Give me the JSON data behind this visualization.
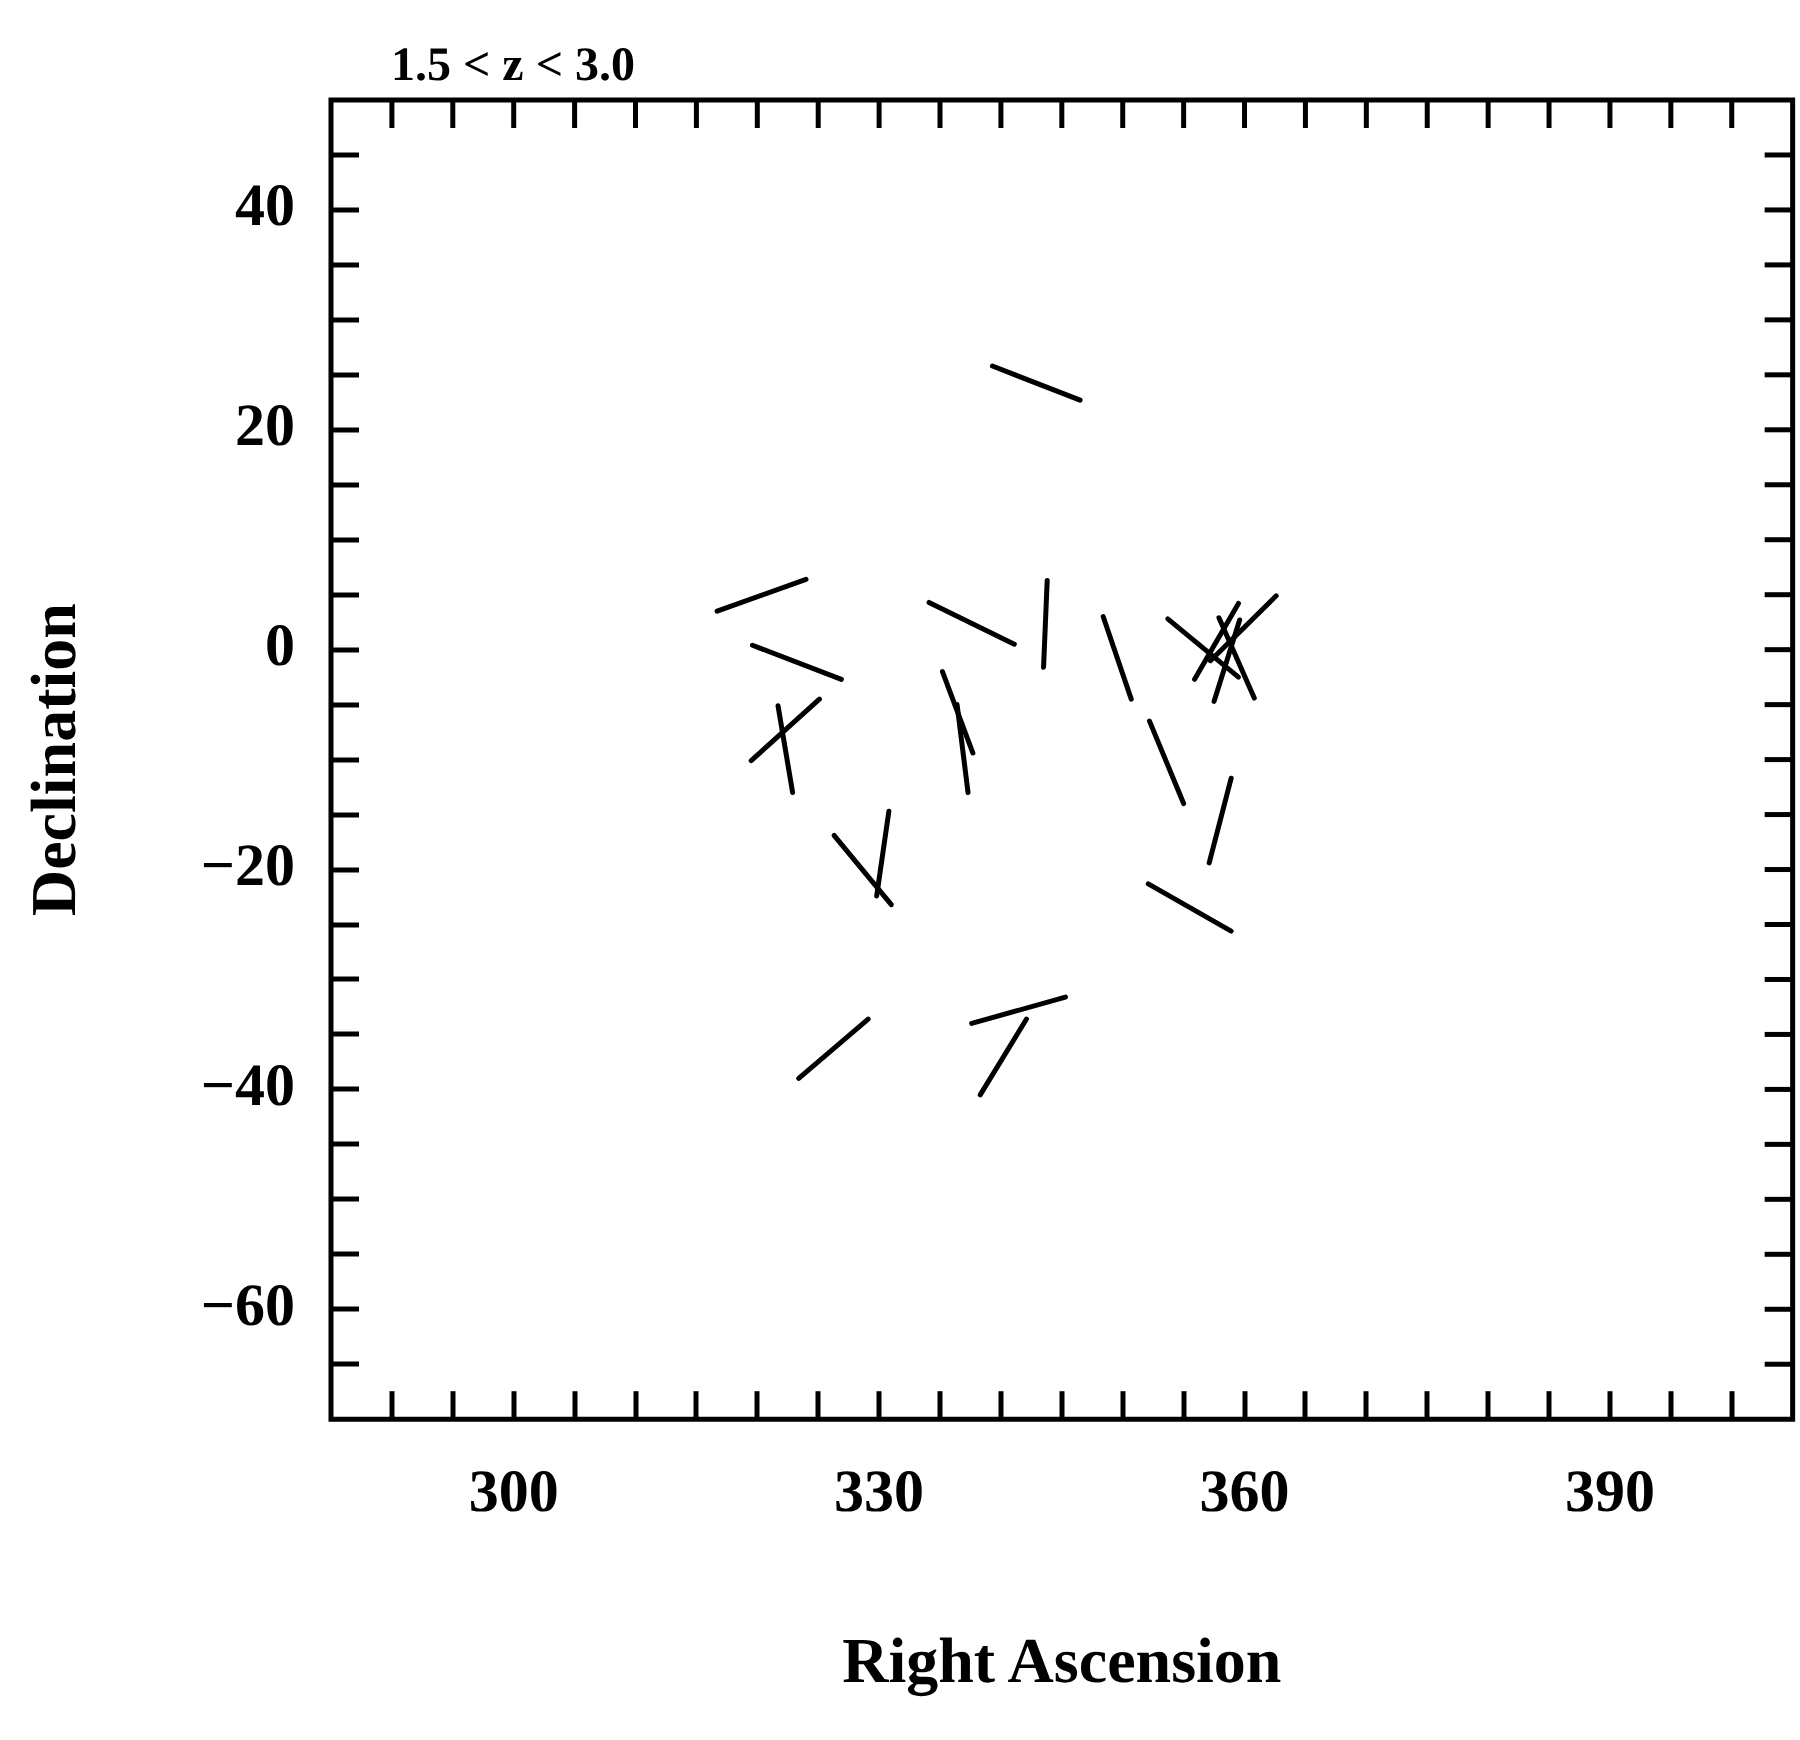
{
  "chart_data": {
    "type": "line",
    "title": "1.5 < z < 3.0",
    "xlabel": "Right Ascension",
    "ylabel": "Declination",
    "xlim": [
      285,
      405
    ],
    "ylim": [
      -70,
      50
    ],
    "xticks": [
      {
        "value": 290,
        "label": null
      },
      {
        "value": 295,
        "label": null
      },
      300,
      {
        "value": 305,
        "label": null
      },
      {
        "value": 310,
        "label": null
      },
      {
        "value": 315,
        "label": null
      },
      {
        "value": 320,
        "label": null
      },
      {
        "value": 325,
        "label": null
      },
      330,
      {
        "value": 335,
        "label": null
      },
      {
        "value": 340,
        "label": null
      },
      {
        "value": 345,
        "label": null
      },
      {
        "value": 350,
        "label": null
      },
      {
        "value": 355,
        "label": null
      },
      360,
      {
        "value": 365,
        "label": null
      },
      {
        "value": 370,
        "label": null
      },
      {
        "value": 375,
        "label": null
      },
      {
        "value": 380,
        "label": null
      },
      {
        "value": 385,
        "label": null
      },
      390,
      {
        "value": 395,
        "label": null
      },
      {
        "value": 400,
        "label": null
      }
    ],
    "yticks": [
      {
        "value": -65,
        "label": null
      },
      -60,
      {
        "value": -55,
        "label": null
      },
      {
        "value": -50,
        "label": null
      },
      {
        "value": -45,
        "label": null
      },
      -40,
      {
        "value": -35,
        "label": null
      },
      {
        "value": -30,
        "label": null
      },
      {
        "value": -25,
        "label": null
      },
      -20,
      {
        "value": -15,
        "label": null
      },
      {
        "value": -10,
        "label": null
      },
      {
        "value": -5,
        "label": null
      },
      0,
      {
        "value": 5,
        "label": null
      },
      {
        "value": 10,
        "label": null
      },
      {
        "value": 15,
        "label": null
      },
      20,
      {
        "value": 25,
        "label": null
      },
      {
        "value": 30,
        "label": null
      },
      {
        "value": 35,
        "label": null
      },
      40,
      {
        "value": 45,
        "label": null
      }
    ],
    "grid": false,
    "legend": false,
    "marker": "none",
    "line_style": "solid",
    "series": [
      {
        "color": "#000000",
        "x": [
          316.7,
          324.0
        ],
        "values": [
          3.5,
          6.4
        ]
      },
      {
        "color": "#000000",
        "x": [
          334.1,
          341.1
        ],
        "values": [
          4.3,
          0.5
        ]
      },
      {
        "color": "#000000",
        "x": [
          319.6,
          326.9
        ],
        "values": [
          0.4,
          -2.7
        ]
      },
      {
        "color": "#000000",
        "x": [
          319.5,
          325.1
        ],
        "values": [
          -10.1,
          -4.5
        ]
      },
      {
        "color": "#000000",
        "x": [
          321.7,
          322.9
        ],
        "values": [
          -5.1,
          -13.0
        ]
      },
      {
        "color": "#000000",
        "x": [
          335.2,
          337.7
        ],
        "values": [
          -2.0,
          -9.4
        ]
      },
      {
        "color": "#000000",
        "x": [
          336.4,
          337.3
        ],
        "values": [
          -5.0,
          -13.0
        ]
      },
      {
        "color": "#000000",
        "x": [
          339.3,
          346.5
        ],
        "values": [
          25.8,
          22.7
        ]
      },
      {
        "color": "#000000",
        "x": [
          343.8,
          343.5
        ],
        "values": [
          6.3,
          -1.6
        ]
      },
      {
        "color": "#000000",
        "x": [
          348.4,
          350.7
        ],
        "values": [
          3.0,
          -4.5
        ]
      },
      {
        "color": "#000000",
        "x": [
          352.2,
          355.0
        ],
        "values": [
          -6.5,
          -14.0
        ]
      },
      {
        "color": "#000000",
        "x": [
          353.7,
          359.5
        ],
        "values": [
          2.8,
          -2.5
        ]
      },
      {
        "color": "#000000",
        "x": [
          355.9,
          359.5
        ],
        "values": [
          -2.7,
          4.2
        ]
      },
      {
        "color": "#000000",
        "x": [
          357.5,
          359.6
        ],
        "values": [
          -4.7,
          2.7
        ]
      },
      {
        "color": "#000000",
        "x": [
          357.9,
          360.8
        ],
        "values": [
          2.9,
          -4.4
        ]
      },
      {
        "color": "#000000",
        "x": [
          362.6,
          357.2
        ],
        "values": [
          4.9,
          -1.0
        ]
      },
      {
        "color": "#000000",
        "x": [
          358.9,
          357.1
        ],
        "values": [
          -11.7,
          -19.4
        ]
      },
      {
        "color": "#000000",
        "x": [
          326.3,
          331.0
        ],
        "values": [
          -16.9,
          -23.2
        ]
      },
      {
        "color": "#000000",
        "x": [
          330.8,
          329.8
        ],
        "values": [
          -14.7,
          -22.4
        ]
      },
      {
        "color": "#000000",
        "x": [
          352.1,
          358.9
        ],
        "values": [
          -21.3,
          -25.6
        ]
      },
      {
        "color": "#000000",
        "x": [
          323.4,
          329.1
        ],
        "values": [
          -39.0,
          -33.6
        ]
      },
      {
        "color": "#000000",
        "x": [
          337.6,
          345.3
        ],
        "values": [
          -34.0,
          -31.6
        ]
      },
      {
        "color": "#000000",
        "x": [
          338.3,
          342.1
        ],
        "values": [
          -40.5,
          -33.6
        ]
      }
    ]
  }
}
